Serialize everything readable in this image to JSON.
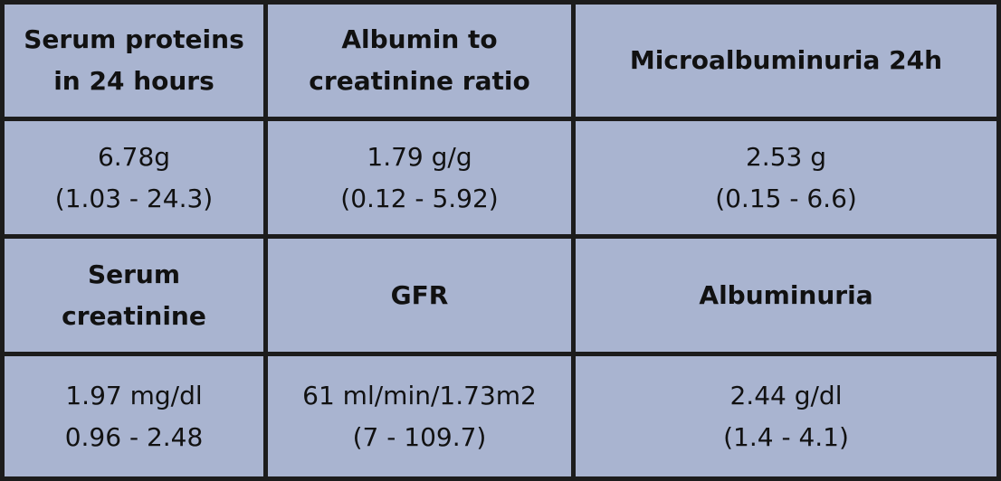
{
  "table": {
    "rows": [
      {
        "kind": "header",
        "cells": [
          {
            "lines": [
              "Serum proteins",
              "in 24 hours"
            ]
          },
          {
            "lines": [
              "Albumin to",
              "creatinine ratio"
            ]
          },
          {
            "lines": [
              "Microalbuminuria 24h"
            ]
          }
        ]
      },
      {
        "kind": "value",
        "cells": [
          {
            "lines": [
              "6.78g",
              "(1.03 - 24.3)"
            ]
          },
          {
            "lines": [
              "1.79 g/g",
              "(0.12 - 5.92)"
            ]
          },
          {
            "lines": [
              "2.53 g",
              "(0.15 - 6.6)"
            ]
          }
        ]
      },
      {
        "kind": "header",
        "cells": [
          {
            "lines": [
              "Serum",
              "creatinine"
            ]
          },
          {
            "lines": [
              "GFR"
            ]
          },
          {
            "lines": [
              "Albuminuria"
            ]
          }
        ]
      },
      {
        "kind": "value",
        "cells": [
          {
            "lines": [
              "1.97 mg/dl",
              "0.96 - 2.48"
            ]
          },
          {
            "lines": [
              "61 ml/min/1.73m2",
              "(7 - 109.7)"
            ]
          },
          {
            "lines": [
              "2.44 g/dl",
              "(1.4 - 4.1)"
            ]
          }
        ]
      }
    ]
  },
  "colors": {
    "cell_background": "#a9b4d0",
    "border": "#1c1c1c",
    "text": "#111111"
  }
}
